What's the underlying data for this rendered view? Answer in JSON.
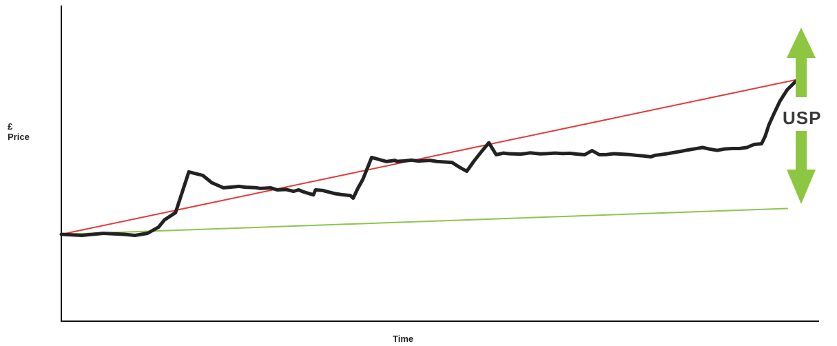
{
  "chart_data": {
    "type": "line",
    "xlabel": "Time",
    "ylabel": [
      "£",
      "Price"
    ],
    "xlim": [
      0,
      100
    ],
    "ylim": [
      0,
      100
    ],
    "grid": false,
    "series": [
      {
        "color": "#222222",
        "x": [
          0,
          2.8,
          5.7,
          8.5,
          10,
          11.7,
          13.2,
          14,
          15.5,
          17.3,
          19.2,
          20.4,
          22,
          24.1,
          25,
          26.3,
          27,
          28.4,
          29.3,
          30.5,
          31.5,
          32.2,
          32.9,
          34.2,
          34.5,
          35.5,
          37,
          38,
          39.2,
          39.6,
          40.2,
          40.9,
          42.1,
          44.1,
          45.3,
          45.5,
          46.5,
          47.5,
          48.5,
          49,
          50,
          51,
          53,
          54,
          55,
          56,
          57,
          58,
          59,
          60,
          60.7,
          62.3,
          63,
          63.6,
          65,
          66,
          67,
          68,
          69,
          70,
          71,
          72,
          73,
          74,
          75,
          76,
          77,
          78,
          79,
          80,
          80.5,
          81,
          82,
          83,
          84,
          85,
          86,
          87,
          88,
          89,
          90,
          91,
          92,
          93,
          94,
          95,
          95.5,
          96,
          96.7,
          97.5,
          98.5,
          99.5,
          100
        ],
        "y": [
          0,
          -0.5,
          0.5,
          0,
          -0.5,
          0.5,
          3.5,
          7,
          10.5,
          30.2,
          28.5,
          25,
          22.5,
          23.2,
          22.8,
          22.6,
          22.2,
          22.5,
          21.5,
          21.7,
          20.8,
          21.5,
          20.5,
          19.1,
          21.5,
          21.2,
          19.8,
          19.2,
          18.8,
          17.5,
          22,
          26.5,
          37.2,
          35.2,
          35.8,
          35.3,
          35.5,
          35.9,
          35.4,
          35.6,
          35.8,
          35.2,
          34.8,
          32.5,
          30.5,
          35.5,
          40,
          44.3,
          38.5,
          39.3,
          39,
          38.8,
          39.1,
          39.4,
          38.9,
          39.1,
          39.3,
          39.1,
          39.2,
          38.8,
          38.5,
          40.5,
          38.5,
          38.6,
          39,
          38.8,
          38.6,
          38.2,
          37.9,
          37.5,
          38.2,
          38.4,
          38.9,
          39.5,
          40.1,
          40.8,
          41.4,
          42,
          41.2,
          40.6,
          41.3,
          41.5,
          41.5,
          42,
          43.5,
          43.8,
          47.5,
          53,
          58.5,
          64.5,
          70,
          73.5,
          75
        ]
      },
      {
        "color": "#e23a3a",
        "x": [
          0,
          100
        ],
        "y": [
          0,
          75
        ]
      },
      {
        "color": "#8fc34d",
        "x": [
          0,
          98.5
        ],
        "y": [
          0,
          12.5
        ]
      }
    ],
    "annotations": [
      {
        "text": "USP",
        "color": "#8dc641"
      }
    ]
  }
}
